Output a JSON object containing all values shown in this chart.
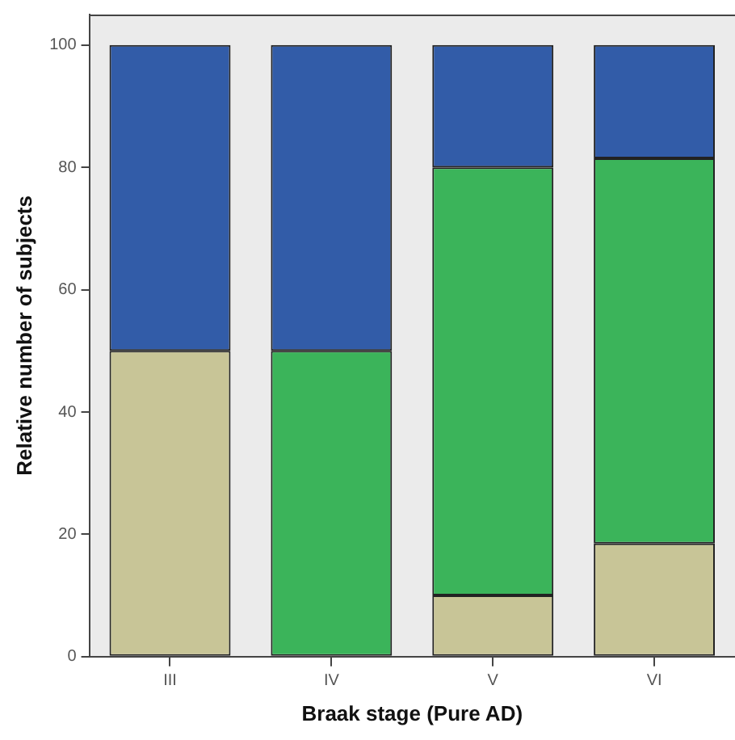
{
  "chart_data": {
    "type": "bar",
    "stacked": true,
    "xlabel": "Braak stage (Pure AD)",
    "ylabel": "Relative number of subjects",
    "categories": [
      "III",
      "IV",
      "V",
      "VI"
    ],
    "series": [
      {
        "color": "#c8c597",
        "values": [
          50,
          0,
          10,
          18.5
        ]
      },
      {
        "color": "#3bb45a",
        "values": [
          0,
          50,
          70,
          63
        ]
      },
      {
        "color": "#325ca8",
        "values": [
          50,
          50,
          20,
          18.5
        ]
      }
    ],
    "ylim": [
      0,
      105
    ],
    "yticks": [
      0,
      20,
      40,
      60,
      80,
      100
    ],
    "grid": false,
    "legend": false
  }
}
